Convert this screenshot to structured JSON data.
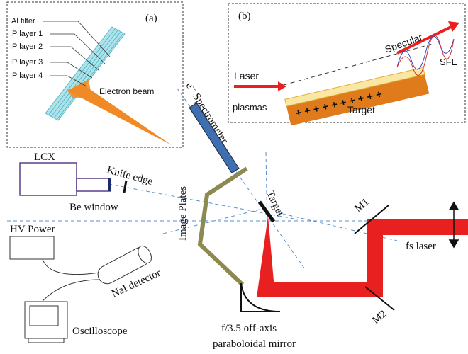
{
  "panel_a": {
    "tag": "(a)",
    "layers": [
      "Al filter",
      "IP layer 1",
      "IP layer 2",
      "IP layer 3",
      "IP layer 4"
    ],
    "beam": "Electron beam"
  },
  "panel_b": {
    "tag": "(b)",
    "laser": "Laser",
    "specular": "Specular",
    "sfe": "SFE",
    "plasmas": "plasmas",
    "target": "Target",
    "charges": "+ + + + + + + + + +"
  },
  "setup": {
    "spectrometer": "e⁻ Spectrometer",
    "lcx": "LCX",
    "knife_edge": "Knife edge",
    "be_window": "Be window",
    "image_plates": "Image Plates",
    "target": "Target",
    "m1": "M1",
    "m2": "M2",
    "fs_laser": "fs laser",
    "hv_power": "HV Power",
    "nai": "NaI detector",
    "oscilloscope": "Oscilloscope",
    "mirror_line1": "f/3.5 off-axis",
    "mirror_line2": "paraboloidal mirror"
  }
}
